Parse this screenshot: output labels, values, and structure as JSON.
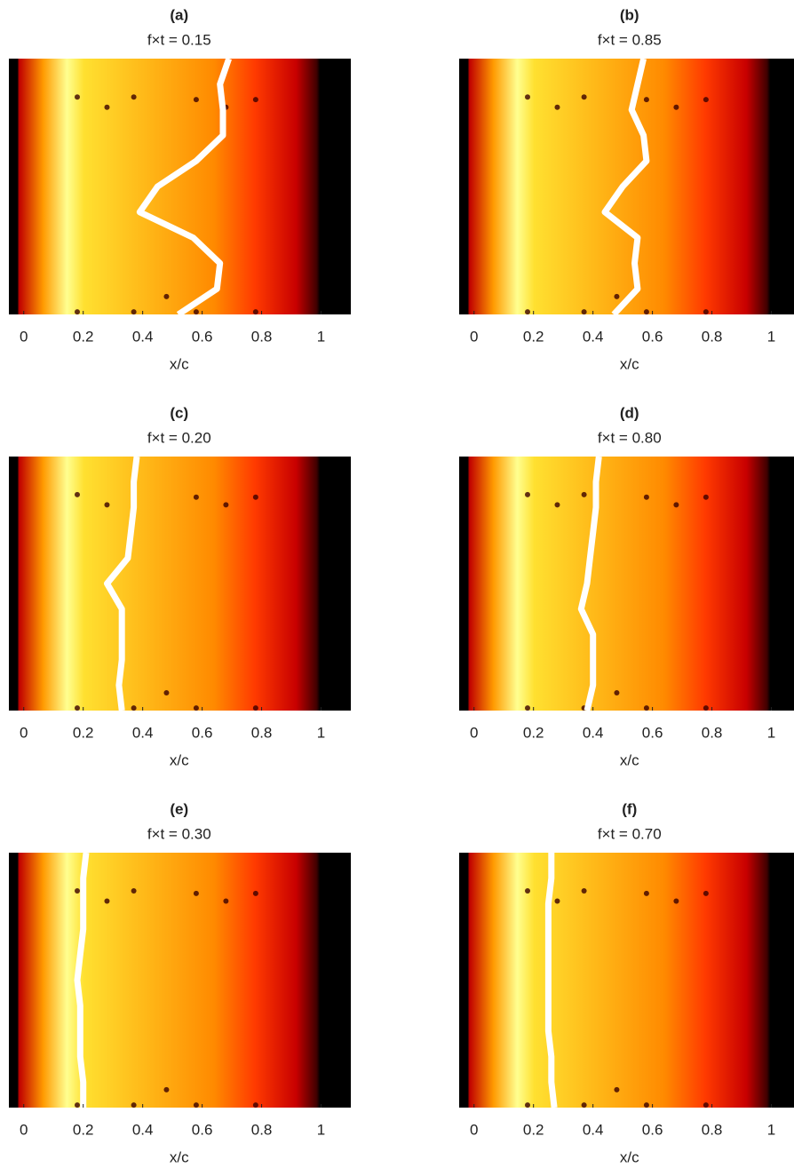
{
  "chart_data": [
    {
      "type": "heatmap",
      "title": "(a)",
      "subtitle": "f×t = 0.15",
      "xlabel": "x/c",
      "xlim": [
        -0.05,
        1.1
      ],
      "xticks": [
        0,
        0.2,
        0.4,
        0.6,
        0.8,
        1
      ],
      "front": [
        0.69,
        0.66,
        0.67,
        0.67,
        0.58,
        0.45,
        0.39,
        0.57,
        0.66,
        0.65,
        0.52
      ],
      "front_color": "#ffffff"
    },
    {
      "type": "heatmap",
      "title": "(b)",
      "subtitle": "f×t = 0.85",
      "xlabel": "x/c",
      "xlim": [
        -0.05,
        1.1
      ],
      "xticks": [
        0,
        0.2,
        0.4,
        0.6,
        0.8,
        1
      ],
      "front": [
        0.57,
        0.55,
        0.53,
        0.57,
        0.58,
        0.5,
        0.44,
        0.55,
        0.54,
        0.55,
        0.47
      ],
      "front_color": "#ffffff"
    },
    {
      "type": "heatmap",
      "title": "(c)",
      "subtitle": "f×t = 0.20",
      "xlabel": "x/c",
      "xlim": [
        -0.05,
        1.1
      ],
      "xticks": [
        0,
        0.2,
        0.4,
        0.6,
        0.8,
        1
      ],
      "front": [
        0.38,
        0.37,
        0.37,
        0.36,
        0.35,
        0.28,
        0.33,
        0.33,
        0.33,
        0.32,
        0.33
      ],
      "front_color": "#ffffff"
    },
    {
      "type": "heatmap",
      "title": "(d)",
      "subtitle": "f×t = 0.80",
      "xlabel": "x/c",
      "xlim": [
        -0.05,
        1.1
      ],
      "xticks": [
        0,
        0.2,
        0.4,
        0.6,
        0.8,
        1
      ],
      "front": [
        0.42,
        0.41,
        0.41,
        0.4,
        0.39,
        0.38,
        0.36,
        0.4,
        0.4,
        0.4,
        0.38
      ],
      "front_color": "#ffffff"
    },
    {
      "type": "heatmap",
      "title": "(e)",
      "subtitle": "f×t = 0.30",
      "xlabel": "x/c",
      "xlim": [
        -0.05,
        1.1
      ],
      "xticks": [
        0,
        0.2,
        0.4,
        0.6,
        0.8,
        1
      ],
      "front": [
        0.21,
        0.2,
        0.2,
        0.2,
        0.19,
        0.18,
        0.19,
        0.19,
        0.19,
        0.2,
        0.2
      ],
      "front_color": "#ffffff"
    },
    {
      "type": "heatmap",
      "title": "(f)",
      "subtitle": "f×t = 0.70",
      "xlabel": "x/c",
      "xlim": [
        -0.05,
        1.1
      ],
      "xticks": [
        0,
        0.2,
        0.4,
        0.6,
        0.8,
        1
      ],
      "front": [
        0.26,
        0.26,
        0.25,
        0.25,
        0.25,
        0.25,
        0.25,
        0.25,
        0.26,
        0.26,
        0.27
      ],
      "front_color": "#ffffff"
    }
  ]
}
